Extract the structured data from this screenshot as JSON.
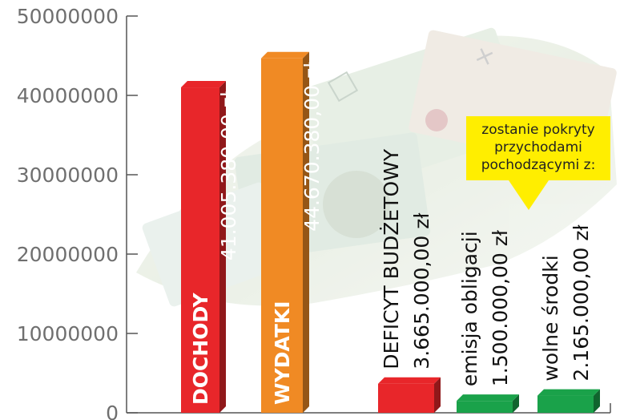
{
  "chart_data": {
    "type": "bar",
    "ylim": [
      0,
      50000000
    ],
    "yticks": [
      {
        "value": 0,
        "label": "0"
      },
      {
        "value": 10000000,
        "label": "10000000"
      },
      {
        "value": 20000000,
        "label": "20000000"
      },
      {
        "value": 30000000,
        "label": "30000000"
      },
      {
        "value": 40000000,
        "label": "40000000"
      },
      {
        "value": 50000000,
        "label": "50000000"
      }
    ],
    "bars": [
      {
        "name": "DOCHODY",
        "value_label": "41.005.380,00 zł",
        "value": 41005380,
        "color": "#e8262a"
      },
      {
        "name": "WYDATKI",
        "value_label": "44.670.380,00 zł",
        "value": 44670380,
        "color": "#f08a24"
      },
      {
        "name": "DEFICYT BUDŻETOWY",
        "value_label": "3.665.000,00 zł",
        "value": 3665000,
        "color": "#e8262a"
      },
      {
        "name": "emisja obligacji",
        "value_label": "1.500.000,00 zł",
        "value": 1500000,
        "color": "#1aa24a"
      },
      {
        "name": "wolne środki",
        "value_label": "2.165.000,00 zł",
        "value": 2165000,
        "color": "#1aa24a"
      }
    ],
    "annotation": [
      "zostanie pokryty",
      "przychodami",
      "pochodzącymi z:"
    ],
    "annotation_color": "#ffee00",
    "grid": false
  }
}
